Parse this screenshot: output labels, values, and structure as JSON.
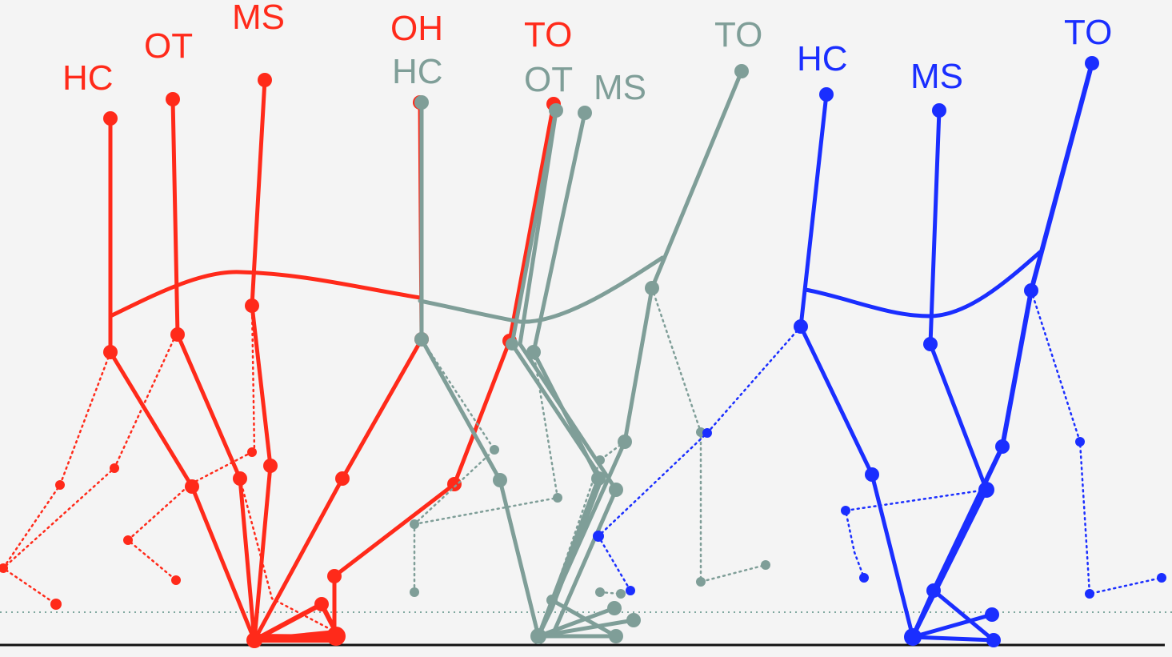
{
  "colors": {
    "red": "#ff2a1a",
    "gray": "#7f9e98",
    "blue": "#1a2eff",
    "background": "#f4f4f4",
    "ground": "#111111",
    "reference_line": "#7fa79f"
  },
  "phases": {
    "red": [
      {
        "id": "red-hc",
        "label": "HC"
      },
      {
        "id": "red-ot",
        "label": "OT"
      },
      {
        "id": "red-ms",
        "label": "MS"
      },
      {
        "id": "red-oh",
        "label": "OH"
      },
      {
        "id": "red-to",
        "label": "TO"
      }
    ],
    "gray": [
      {
        "id": "gray-hc",
        "label": "HC"
      },
      {
        "id": "gray-ot",
        "label": "OT"
      },
      {
        "id": "gray-ms",
        "label": "MS"
      },
      {
        "id": "gray-to",
        "label": "TO"
      }
    ],
    "blue": [
      {
        "id": "blue-hc",
        "label": "HC"
      },
      {
        "id": "blue-ms",
        "label": "MS"
      },
      {
        "id": "blue-to",
        "label": "TO"
      }
    ]
  }
}
